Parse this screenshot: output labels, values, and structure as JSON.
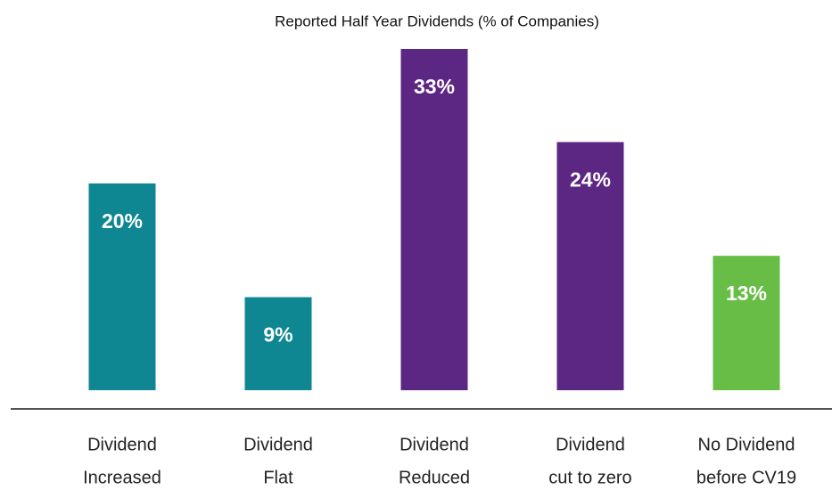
{
  "chart_data": {
    "type": "bar",
    "title": "Reported Half Year Dividends (% of Companies)",
    "categories": [
      [
        "Dividend",
        "Increased"
      ],
      [
        "Dividend",
        "Flat"
      ],
      [
        "Dividend",
        "Reduced"
      ],
      [
        "Dividend",
        "cut to zero"
      ],
      [
        "No Dividend",
        "before CV19"
      ]
    ],
    "values": [
      20,
      9,
      33,
      24,
      13
    ],
    "value_labels": [
      "20%",
      "9%",
      "33%",
      "24%",
      "13%"
    ],
    "colors": [
      "#0e8793",
      "#0e8793",
      "#5c2683",
      "#5c2683",
      "#67bd45"
    ]
  }
}
